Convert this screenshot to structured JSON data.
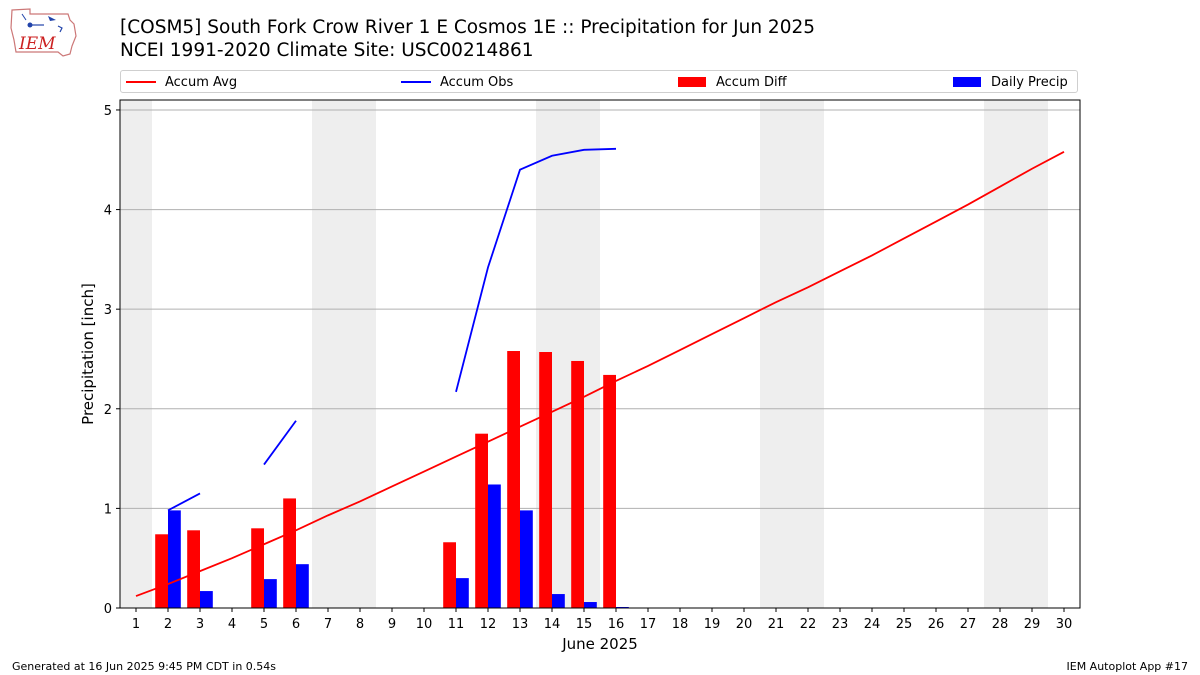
{
  "header": {
    "title_line1": "[COSM5] South Fork Crow River 1 E Cosmos 1E :: Precipitation for Jun 2025",
    "title_line2": "NCEI 1991-2020 Climate Site: USC00214861",
    "logo_text": "IEM"
  },
  "legend": {
    "location": "top, horizontal above plot",
    "items": [
      {
        "label": "Accum Avg",
        "kind": "line",
        "color": "#ff0000"
      },
      {
        "label": "Accum Obs",
        "kind": "line",
        "color": "#0000ff"
      },
      {
        "label": "Accum Diff",
        "kind": "bar",
        "color": "#ff0000"
      },
      {
        "label": "Daily Precip",
        "kind": "bar",
        "color": "#0000ff"
      }
    ]
  },
  "chart_data": {
    "type": "bar",
    "xlabel": "June 2025",
    "ylabel": "Precipitation [inch]",
    "xlim": [
      0.5,
      30.5
    ],
    "ylim": [
      0,
      5.1
    ],
    "yticks": [
      0,
      1,
      2,
      3,
      4,
      5
    ],
    "x_ticks": [
      1,
      2,
      3,
      4,
      5,
      6,
      7,
      8,
      9,
      10,
      11,
      12,
      13,
      14,
      15,
      16,
      17,
      18,
      19,
      20,
      21,
      22,
      23,
      24,
      25,
      26,
      27,
      28,
      29,
      30
    ],
    "grid": "horizontal on y ticks",
    "weekend_shading_days": [
      1,
      7,
      8,
      14,
      15,
      21,
      22,
      28,
      29
    ],
    "shading_color": "#eeeeee",
    "series": [
      {
        "name": "Accum Avg",
        "kind": "line",
        "color": "#ff0000",
        "x": [
          1,
          2,
          3,
          4,
          5,
          6,
          7,
          8,
          9,
          10,
          11,
          12,
          13,
          14,
          15,
          16,
          17,
          18,
          19,
          20,
          21,
          22,
          23,
          24,
          25,
          26,
          27,
          28,
          29,
          30
        ],
        "values": [
          0.12,
          0.24,
          0.37,
          0.5,
          0.64,
          0.78,
          0.93,
          1.07,
          1.22,
          1.37,
          1.52,
          1.67,
          1.82,
          1.97,
          2.12,
          2.28,
          2.43,
          2.59,
          2.75,
          2.91,
          3.07,
          3.22,
          3.38,
          3.54,
          3.71,
          3.88,
          4.05,
          4.23,
          4.41,
          4.58
        ]
      },
      {
        "name": "Accum Obs",
        "kind": "line",
        "color": "#0000ff",
        "segments": [
          {
            "x": [
              2,
              3
            ],
            "values": [
              0.98,
              1.15
            ]
          },
          {
            "x": [
              5,
              6
            ],
            "values": [
              1.44,
              1.88
            ]
          },
          {
            "x": [
              11,
              12,
              13,
              14,
              15,
              16
            ],
            "values": [
              2.17,
              3.42,
              4.4,
              4.54,
              4.6,
              4.61
            ]
          }
        ]
      },
      {
        "name": "Accum Diff",
        "kind": "bar",
        "color": "#ff0000",
        "x": [
          2,
          3,
          5,
          6,
          11,
          12,
          13,
          14,
          15,
          16
        ],
        "values": [
          0.74,
          0.78,
          0.8,
          1.1,
          0.66,
          1.75,
          2.58,
          2.57,
          2.48,
          2.34
        ]
      },
      {
        "name": "Daily Precip",
        "kind": "bar",
        "color": "#0000ff",
        "x": [
          2,
          3,
          5,
          6,
          11,
          12,
          13,
          14,
          15,
          16
        ],
        "values": [
          0.98,
          0.17,
          0.29,
          0.44,
          0.3,
          1.24,
          0.98,
          0.14,
          0.06,
          0.01
        ]
      }
    ]
  },
  "footer": {
    "left": "Generated at 16 Jun 2025 9:45 PM CDT in 0.54s",
    "right": "IEM Autoplot App #17"
  }
}
